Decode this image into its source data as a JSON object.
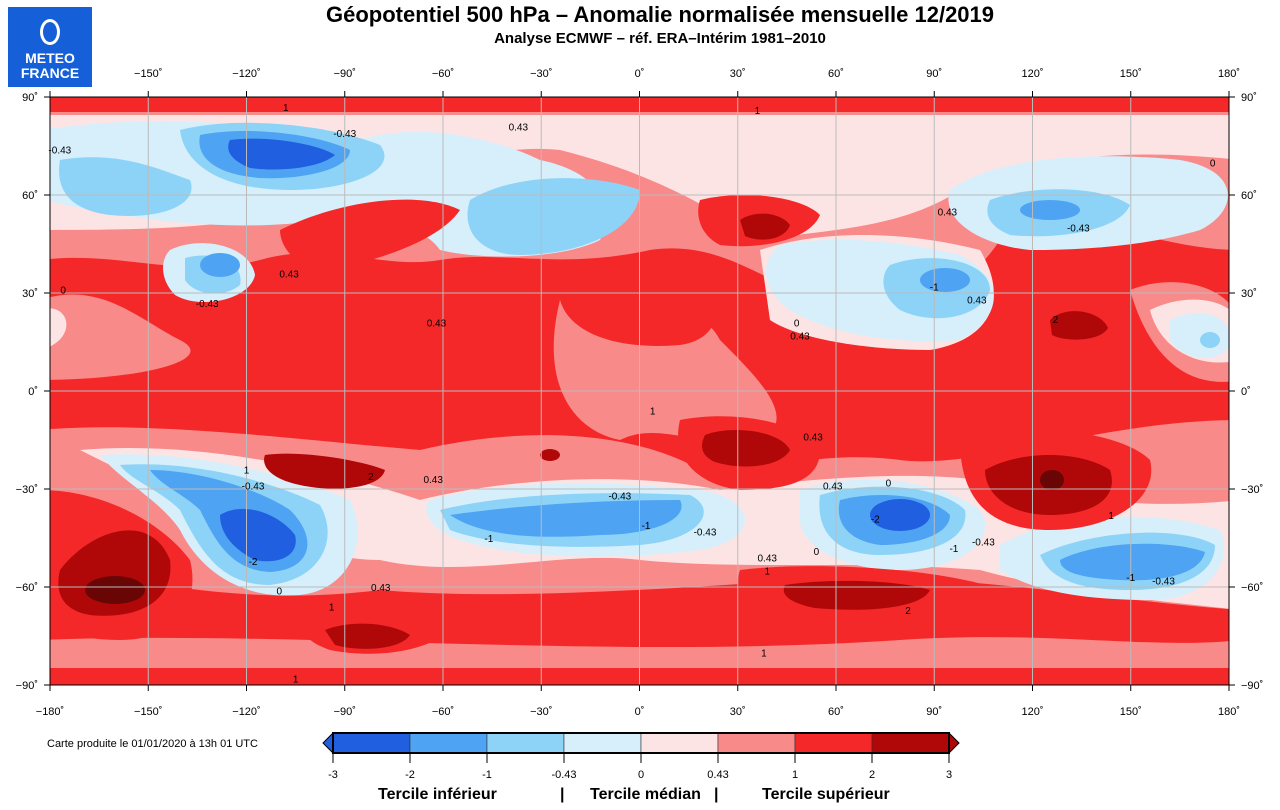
{
  "header": {
    "title": "Géopotentiel 500 hPa – Anomalie normalisée mensuelle 12/2019",
    "subtitle": "Analyse ECMWF – réf. ERA–Intérim 1981–2010"
  },
  "logo": {
    "line1": "METEO",
    "line2": "FRANCE",
    "color": "#1560d8"
  },
  "footer": {
    "text": "Carte produite le 01/01/2020 à 13h 01 UTC"
  },
  "map": {
    "lon_ticks": [
      "−180˚",
      "−150˚",
      "−120˚",
      "−90˚",
      "−60˚",
      "−30˚",
      "0˚",
      "30˚",
      "60˚",
      "90˚",
      "120˚",
      "150˚",
      "180˚"
    ],
    "lat_ticks": [
      "90˚",
      "60˚",
      "30˚",
      "0˚",
      "−30˚",
      "−60˚",
      "−90˚"
    ],
    "contour_labels": [
      {
        "t": "-0.43",
        "lon": -90,
        "lat": 79
      },
      {
        "t": "0.43",
        "lon": -37,
        "lat": 81
      },
      {
        "t": "-0.43",
        "lon": -177,
        "lat": 74
      },
      {
        "t": "-0.43",
        "lon": -132,
        "lat": 27
      },
      {
        "t": "0.43",
        "lon": -107,
        "lat": 36
      },
      {
        "t": "0.43",
        "lon": -62,
        "lat": 21
      },
      {
        "t": "1",
        "lon": -108,
        "lat": 87
      },
      {
        "t": "1",
        "lon": 36,
        "lat": 86
      },
      {
        "t": "0",
        "lon": 175,
        "lat": 70
      },
      {
        "t": "0.43",
        "lon": 94,
        "lat": 55
      },
      {
        "t": "-0.43",
        "lon": 134,
        "lat": 50
      },
      {
        "t": "-1",
        "lon": 90,
        "lat": 32
      },
      {
        "t": "0.43",
        "lon": 103,
        "lat": 28
      },
      {
        "t": "2",
        "lon": 127,
        "lat": 22
      },
      {
        "t": "0.43",
        "lon": 49,
        "lat": 17
      },
      {
        "t": "0",
        "lon": 48,
        "lat": 21
      },
      {
        "t": "0",
        "lon": -176,
        "lat": 31
      },
      {
        "t": "1",
        "lon": 4,
        "lat": -6
      },
      {
        "t": "0.43",
        "lon": 53,
        "lat": -14
      },
      {
        "t": "1",
        "lon": -120,
        "lat": -24
      },
      {
        "t": "2",
        "lon": -82,
        "lat": -26
      },
      {
        "t": "-0.43",
        "lon": -118,
        "lat": -29
      },
      {
        "t": "0.43",
        "lon": -63,
        "lat": -27
      },
      {
        "t": "-0.43",
        "lon": -6,
        "lat": -32
      },
      {
        "t": "-1",
        "lon": 2,
        "lat": -41
      },
      {
        "t": "-0.43",
        "lon": 20,
        "lat": -43
      },
      {
        "t": "-1",
        "lon": -46,
        "lat": -45
      },
      {
        "t": "0.43",
        "lon": 59,
        "lat": -29
      },
      {
        "t": "0",
        "lon": 76,
        "lat": -28
      },
      {
        "t": "-2",
        "lon": 72,
        "lat": -39
      },
      {
        "t": "-0.43",
        "lon": 105,
        "lat": -46
      },
      {
        "t": "-1",
        "lon": 96,
        "lat": -48
      },
      {
        "t": "0",
        "lon": 54,
        "lat": -49
      },
      {
        "t": "0.43",
        "lon": 39,
        "lat": -51
      },
      {
        "t": "1",
        "lon": 39,
        "lat": -55
      },
      {
        "t": "-1",
        "lon": 150,
        "lat": -57
      },
      {
        "t": "-0.43",
        "lon": 160,
        "lat": -58
      },
      {
        "t": "2",
        "lon": 82,
        "lat": -67
      },
      {
        "t": "0.43",
        "lon": -79,
        "lat": -60
      },
      {
        "t": "0",
        "lon": -110,
        "lat": -61
      },
      {
        "t": "1",
        "lon": -94,
        "lat": -66
      },
      {
        "t": "1",
        "lon": 38,
        "lat": -80
      },
      {
        "t": "1",
        "lon": -105,
        "lat": -88
      },
      {
        "t": "-2",
        "lon": -118,
        "lat": -52
      },
      {
        "t": "1",
        "lon": 144,
        "lat": -38
      }
    ]
  },
  "legend": {
    "levels": [
      "-3",
      "-2",
      "-1",
      "-0.43",
      "0",
      "0.43",
      "1",
      "2",
      "3"
    ],
    "colors": [
      "#1f5fe0",
      "#4ea3f3",
      "#8dd3f8",
      "#d6effb",
      "#fde4e4",
      "#f98a8a",
      "#f42828",
      "#b00808"
    ],
    "tercile_lower": "Tercile inférieur",
    "tercile_median": "Tercile médian",
    "tercile_upper": "Tercile supérieur",
    "separator": "|"
  }
}
